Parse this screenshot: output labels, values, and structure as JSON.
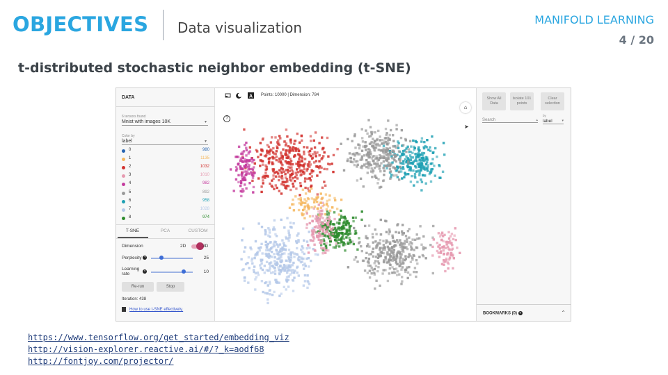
{
  "header": {
    "title": "OBJECTIVES",
    "subtitle": "Data visualization",
    "course": "MANIFOLD LEARNING",
    "page": "4 / 20"
  },
  "heading": "t-distributed stochastic neighbor embedding (t-SNE)",
  "projector": {
    "data_heading": "DATA",
    "tensors_found": "6 tensors found",
    "dataset": "Mnist with images 10K",
    "color_by_small": "Color by",
    "color_by": "label",
    "legend": [
      {
        "label": "0",
        "count": "980",
        "color": "#2563b0"
      },
      {
        "label": "1",
        "count": "1135",
        "color": "#f5b860"
      },
      {
        "label": "2",
        "count": "1032",
        "color": "#d2332f"
      },
      {
        "label": "3",
        "count": "1010",
        "color": "#e69ab0"
      },
      {
        "label": "4",
        "count": "982",
        "color": "#c43c9e"
      },
      {
        "label": "5",
        "count": "892",
        "color": "#9a9a9a"
      },
      {
        "label": "6",
        "count": "958",
        "color": "#1ea0b3"
      },
      {
        "label": "7",
        "count": "1028",
        "color": "#b4c8e8"
      },
      {
        "label": "8",
        "count": "974",
        "color": "#2e8b2e"
      }
    ],
    "tabs": [
      "T-SNE",
      "PCA",
      "CUSTOM"
    ],
    "dimension_label": "Dimension",
    "dim_2d": "2D",
    "dim_3d": "3D",
    "perplexity_label": "Perplexity",
    "perplexity_value": "25",
    "perplexity_level": 0.25,
    "learning_rate_label_1": "Learning",
    "learning_rate_label_2": "rate",
    "learning_rate_value": "10",
    "learning_rate_level": 0.78,
    "rerun": "Re-run",
    "stop": "Stop",
    "iteration": "Iteration: 438",
    "howto": "How to use t-SNE effectively.",
    "points_info": "Points: 10000 | Dimension: 784",
    "btn_show_all": "Show All Data",
    "btn_isolate": "Isolate 101 points",
    "btn_clear": "Clear selection",
    "search_placeholder": "Search",
    "by_small": "by",
    "by_value": "label",
    "bookmarks": "BOOKMARKS (0)",
    "icons": {
      "home": "home-icon",
      "help": "help-icon",
      "night": "night-mode-icon",
      "label": "label-toggle-icon",
      "select": "select-box-icon",
      "cursor": "cursor-icon"
    }
  },
  "links": [
    "https://www.tensorflow.org/get_started/embedding_viz",
    "http://vision-explorer.reactive.ai/#/?_k=aodf68",
    "http://fontjoy.com/projector/"
  ]
}
